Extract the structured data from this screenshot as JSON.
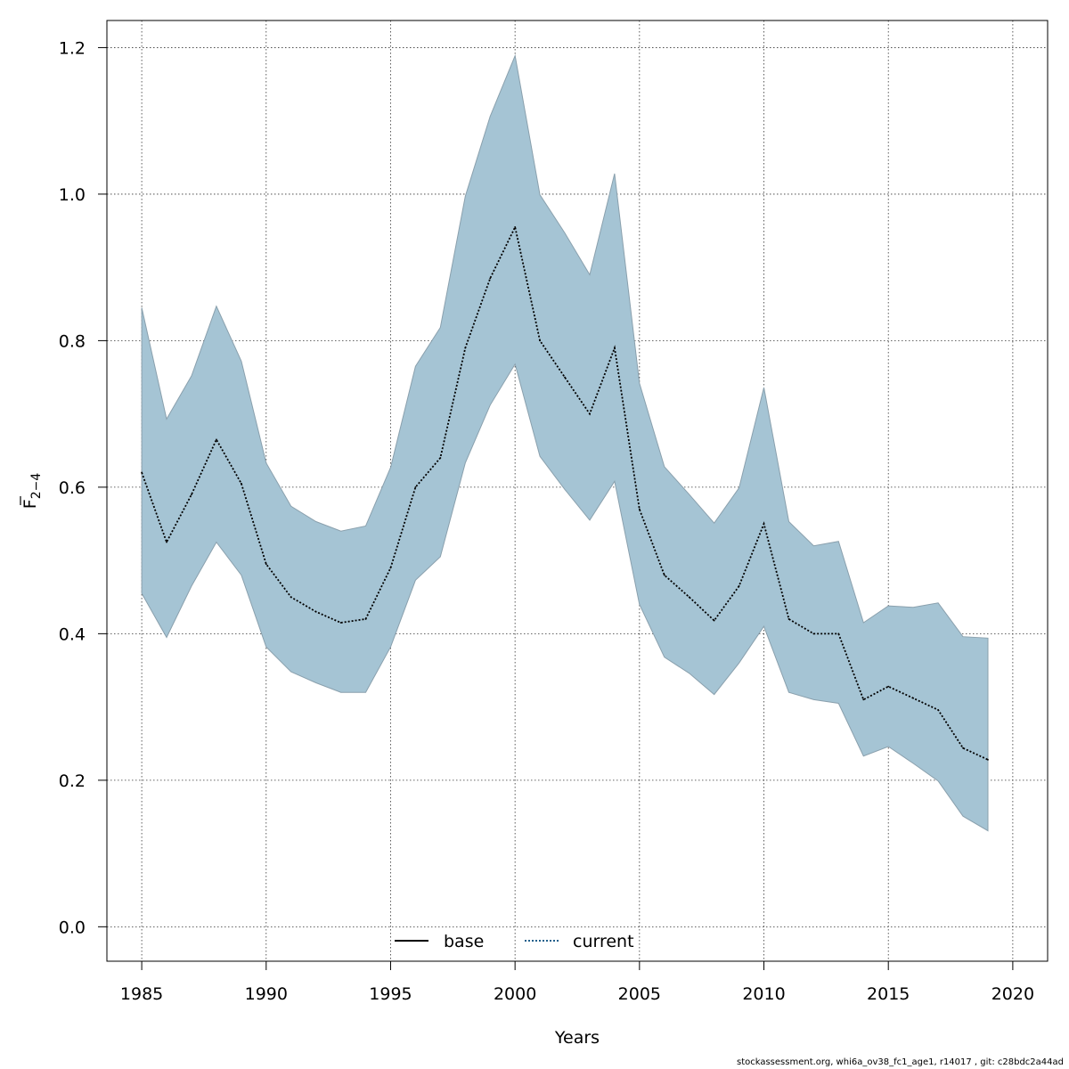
{
  "chart_data": {
    "type": "area",
    "xlabel": "Years",
    "ylabel": "F",
    "ylabel_subscript": "2−4",
    "xlim": [
      1983.6,
      2021.4
    ],
    "ylim": [
      -0.047,
      1.237
    ],
    "xticks": [
      "1985",
      "1990",
      "1995",
      "2000",
      "2005",
      "2010",
      "2015",
      "2020"
    ],
    "yticks": [
      "0.0",
      "0.2",
      "0.4",
      "0.6",
      "0.8",
      "1.0",
      "1.2"
    ],
    "grid": true,
    "legend": {
      "placement": "bottom-center",
      "entries": [
        {
          "label": "base",
          "style": "solid",
          "color": "#000000"
        },
        {
          "label": "current",
          "style": "dotted",
          "color": "#1f5f8b"
        }
      ]
    },
    "band_color": "#a5c4d4",
    "years": [
      1985,
      1986,
      1987,
      1988,
      1989,
      1990,
      1991,
      1992,
      1993,
      1994,
      1995,
      1996,
      1997,
      1998,
      1999,
      2000,
      2001,
      2002,
      2003,
      2004,
      2005,
      2006,
      2007,
      2008,
      2009,
      2010,
      2011,
      2012,
      2013,
      2014,
      2015,
      2016,
      2017,
      2018,
      2019
    ],
    "series": [
      {
        "name": "current",
        "values": [
          0.62,
          0.525,
          0.59,
          0.665,
          0.605,
          0.495,
          0.45,
          0.43,
          0.415,
          0.42,
          0.49,
          0.6,
          0.64,
          0.79,
          0.885,
          0.955,
          0.8,
          0.75,
          0.7,
          0.79,
          0.57,
          0.48,
          0.45,
          0.418,
          0.465,
          0.55,
          0.42,
          0.4,
          0.4,
          0.31,
          0.328,
          0.312,
          0.296,
          0.244,
          0.228
        ]
      }
    ],
    "band": {
      "upper": [
        0.845,
        0.693,
        0.752,
        0.847,
        0.772,
        0.633,
        0.574,
        0.553,
        0.54,
        0.547,
        0.627,
        0.765,
        0.818,
        0.997,
        1.106,
        1.189,
        0.999,
        0.947,
        0.89,
        1.028,
        0.742,
        0.628,
        0.59,
        0.551,
        0.599,
        0.736,
        0.553,
        0.52,
        0.526,
        0.415,
        0.438,
        0.436,
        0.442,
        0.396,
        0.394
      ],
      "lower": [
        0.455,
        0.395,
        0.465,
        0.525,
        0.48,
        0.382,
        0.348,
        0.333,
        0.32,
        0.32,
        0.382,
        0.473,
        0.505,
        0.633,
        0.712,
        0.768,
        0.642,
        0.597,
        0.555,
        0.608,
        0.44,
        0.368,
        0.346,
        0.317,
        0.36,
        0.41,
        0.32,
        0.31,
        0.305,
        0.233,
        0.246,
        0.223,
        0.199,
        0.151,
        0.131
      ]
    }
  },
  "footer_text": "stockassessment.org, whi6a_ov38_fc1_age1, r14017 , git: c28bdc2a44ad"
}
